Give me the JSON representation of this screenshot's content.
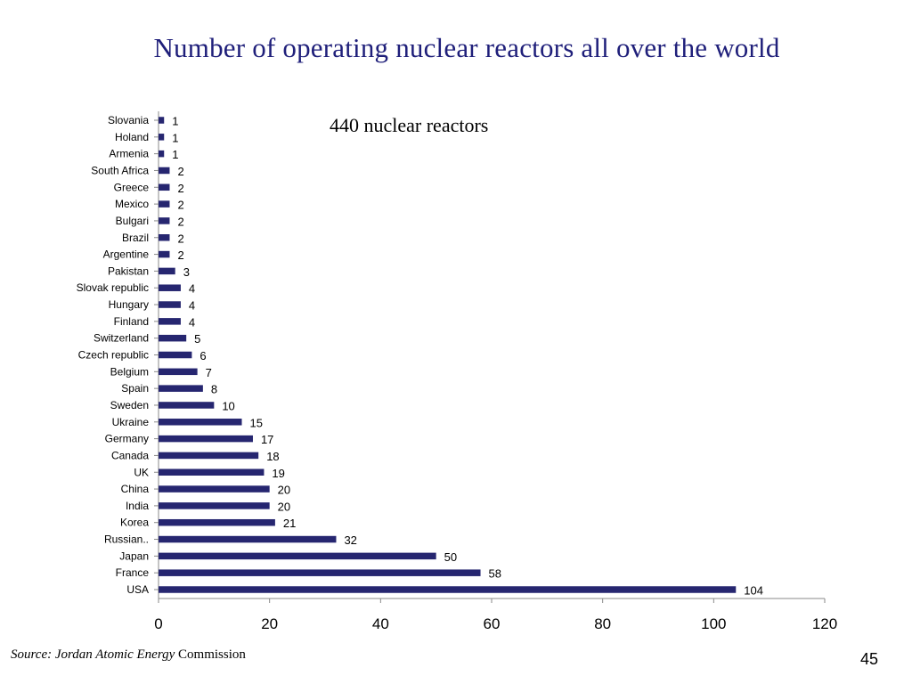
{
  "slide": {
    "title": "Number of operating nuclear reactors all over the world",
    "subtitle": "440 nuclear reactors",
    "source_italic": "Source: Jordan Atomic Energy",
    "source_plain": " Commission",
    "page_number": "45"
  },
  "chart_data": {
    "type": "bar",
    "orientation": "horizontal",
    "categories": [
      "Slovania",
      "Holand",
      "Armenia",
      "South Africa",
      "Greece",
      "Mexico",
      "Bulgari",
      "Brazil",
      "Argentine",
      "Pakistan",
      "Slovak republic",
      "Hungary",
      "Finland",
      "Switzerland",
      "Czech republic",
      "Belgium",
      "Spain",
      "Sweden",
      "Ukraine",
      "Germany",
      "Canada",
      "UK",
      "China",
      "India",
      "Korea",
      "Russian..",
      "Japan",
      "France",
      "USA"
    ],
    "values": [
      1,
      1,
      1,
      2,
      2,
      2,
      2,
      2,
      2,
      3,
      4,
      4,
      4,
      5,
      6,
      7,
      8,
      10,
      15,
      17,
      18,
      19,
      20,
      20,
      21,
      32,
      50,
      58,
      104
    ],
    "xlim": [
      0,
      120
    ],
    "xticks": [
      0,
      20,
      40,
      60,
      80,
      100,
      120
    ],
    "bar_color": "#262670",
    "grid": false,
    "data_labels": true
  }
}
